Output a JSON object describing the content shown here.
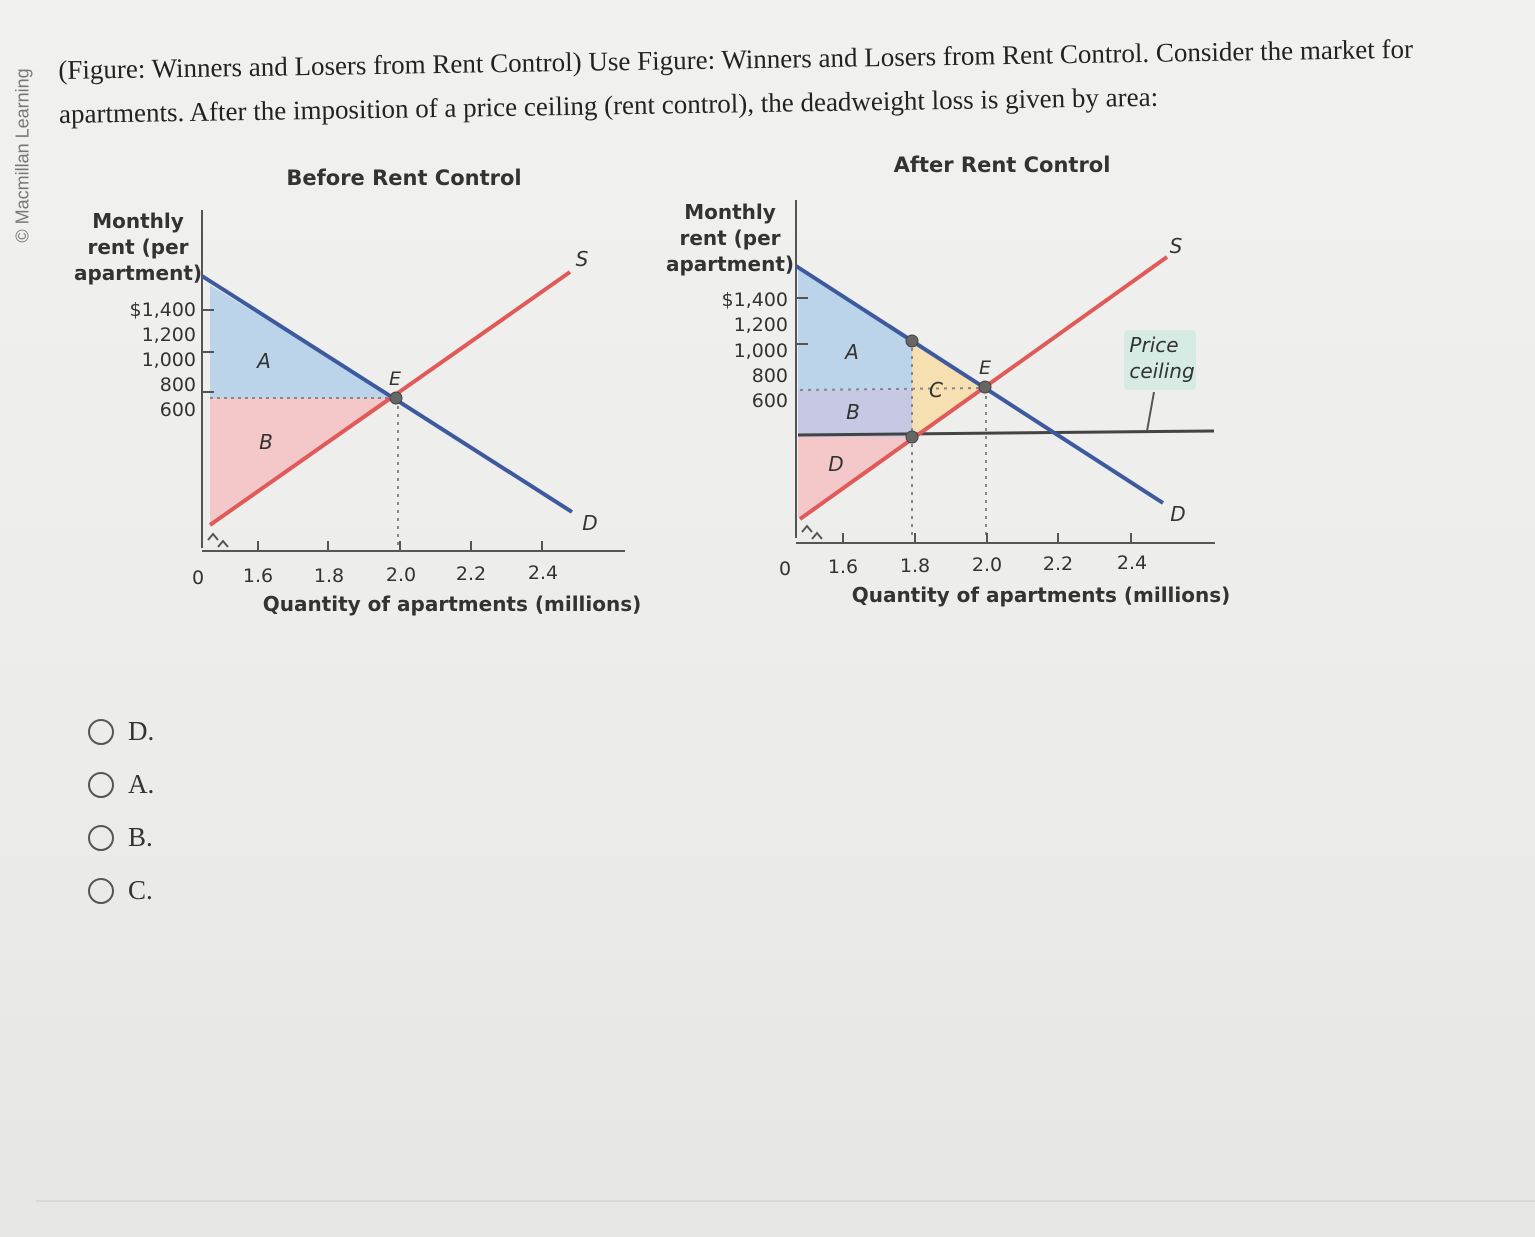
{
  "credit": "© Macmillan Learning",
  "question": "(Figure: Winners and Losers from Rent Control) Use Figure: Winners and Losers from Rent Control. Consider the market for apartments. After the imposition of a price ceiling (rent control), the deadweight loss is given by area:",
  "options": [
    "D.",
    "A.",
    "B.",
    "C."
  ],
  "colors": {
    "demand": "#3d5a9e",
    "supply": "#e05a5a",
    "consumer_surplus": "#bcd4ea",
    "producer_surplus": "#f4c8c8",
    "transfer": "#c7c8e4",
    "deadweight": "#f6dfb0",
    "ceiling": "#444444",
    "label_box": "#d6ebe4"
  },
  "chart_data": [
    {
      "type": "line",
      "title": "Before Rent Control",
      "xlabel": "Quantity of apartments (millions)",
      "ylabel": "Monthly rent (per apartment)",
      "x_ticks": [
        "1.6",
        "1.8",
        "2.0",
        "2.2",
        "2.4"
      ],
      "x_origin_label": "0",
      "y_ticks": [
        "$1,400",
        "1,200",
        "1,000",
        "800",
        "600"
      ],
      "series": [
        {
          "name": "D",
          "x": [
            1.6,
            2.0,
            2.5
          ],
          "y": [
            1400,
            1000,
            500
          ]
        },
        {
          "name": "S",
          "x": [
            1.6,
            2.0,
            2.5
          ],
          "y": [
            600,
            1000,
            1500
          ]
        }
      ],
      "points": [
        {
          "label": "E",
          "x": 2.0,
          "y": 1000
        }
      ],
      "areas": [
        {
          "label": "A"
        },
        {
          "label": "B"
        }
      ]
    },
    {
      "type": "line",
      "title": "After Rent Control",
      "xlabel": "Quantity of apartments (millions)",
      "ylabel": "Monthly rent (per apartment)",
      "x_ticks": [
        "1.6",
        "1.8",
        "2.0",
        "2.2",
        "2.4"
      ],
      "x_origin_label": "0",
      "y_ticks": [
        "$1,400",
        "1,200",
        "1,000",
        "800",
        "600"
      ],
      "series": [
        {
          "name": "D",
          "x": [
            1.6,
            2.0,
            2.5
          ],
          "y": [
            1400,
            1000,
            500
          ]
        },
        {
          "name": "S",
          "x": [
            1.6,
            2.0,
            2.5
          ],
          "y": [
            600,
            1000,
            1500
          ]
        }
      ],
      "price_ceiling": {
        "label": "Price ceiling",
        "y": 800
      },
      "points": [
        {
          "label": "E",
          "x": 2.0,
          "y": 1000
        },
        {
          "x": 1.8,
          "y": 1200
        },
        {
          "x": 1.8,
          "y": 800
        }
      ],
      "areas": [
        {
          "label": "A"
        },
        {
          "label": "B"
        },
        {
          "label": "C"
        },
        {
          "label": "D"
        }
      ]
    }
  ]
}
